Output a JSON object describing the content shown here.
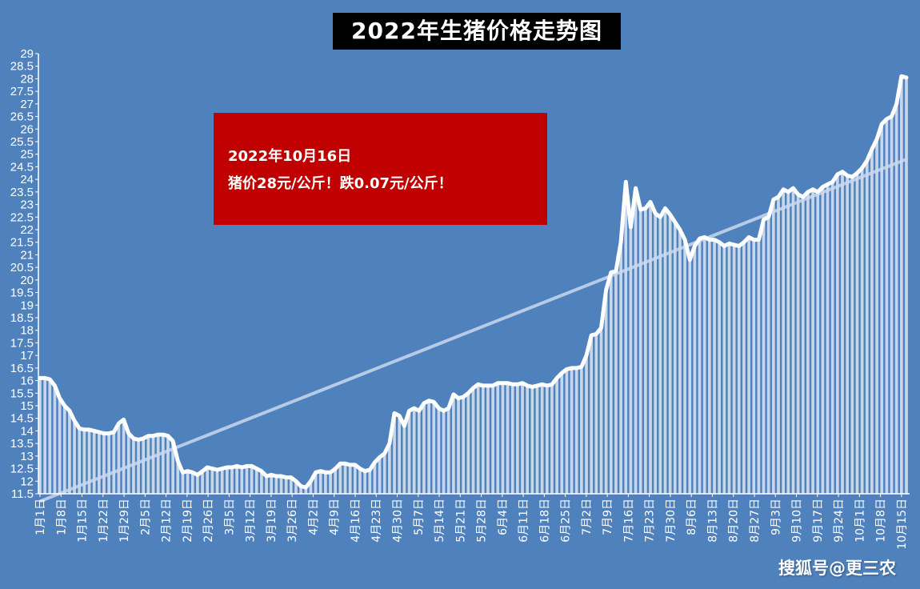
{
  "title": "2022年生猪价格走势图",
  "annotation": {
    "line1": "2022年10月16日",
    "line2": "猪价28元/公斤！跌0.07元/公斤！"
  },
  "watermark": "搜狐号@更三农",
  "colors": {
    "background": "#4f81bd",
    "title_bg": "#000000",
    "annotation_bg": "#c00000",
    "line": "#ffffff",
    "trend": "#c9d8ee"
  },
  "chart_data": {
    "type": "line",
    "title": "2022年生猪价格走势图",
    "xlabel": "",
    "ylabel": "",
    "ylim": [
      11.5,
      29
    ],
    "yticks": [
      "11.5",
      "12",
      "12.5",
      "13",
      "13.5",
      "14",
      "14.5",
      "15",
      "15.5",
      "16",
      "16.5",
      "17",
      "17.5",
      "18",
      "18.5",
      "19",
      "19.5",
      "20",
      "20.5",
      "21",
      "21.5",
      "22",
      "22.5",
      "23",
      "23.5",
      "24",
      "24.5",
      "25",
      "25.5",
      "26",
      "26.5",
      "27",
      "27.5",
      "28",
      "28.5",
      "29"
    ],
    "xtick_labels": [
      "1月1日",
      "1月8日",
      "1月15日",
      "1月22日",
      "1月29日",
      "2月5日",
      "2月12日",
      "2月19日",
      "2月26日",
      "3月5日",
      "3月12日",
      "3月19日",
      "3月26日",
      "4月2日",
      "4月9日",
      "4月16日",
      "4月23日",
      "4月30日",
      "5月7日",
      "5月14日",
      "5月21日",
      "5月28日",
      "6月4日",
      "6月11日",
      "6月18日",
      "6月25日",
      "7月2日",
      "7月9日",
      "7月16日",
      "7月23日",
      "7月30日",
      "8月6日",
      "8月13日",
      "8月20日",
      "8月27日",
      "9月3日",
      "9月10日",
      "9月17日",
      "9月24日",
      "10月1日",
      "10月8日",
      "10月15日"
    ],
    "series": [
      {
        "values": [
          16.1,
          16.1,
          16.05,
          15.8,
          15.3,
          15.0,
          14.8,
          14.4,
          14.1,
          14.05,
          14.05,
          14.0,
          13.95,
          13.9,
          13.9,
          13.95,
          14.3,
          14.45,
          13.9,
          13.7,
          13.65,
          13.7,
          13.8,
          13.8,
          13.85,
          13.85,
          13.8,
          13.6,
          12.8,
          12.35,
          12.4,
          12.35,
          12.25,
          12.4,
          12.55,
          12.5,
          12.45,
          12.5,
          12.55,
          12.55,
          12.6,
          12.55,
          12.6,
          12.6,
          12.5,
          12.4,
          12.2,
          12.25,
          12.2,
          12.2,
          12.15,
          12.15,
          12.0,
          11.8,
          11.75,
          12.0,
          12.35,
          12.4,
          12.35,
          12.35,
          12.5,
          12.7,
          12.7,
          12.65,
          12.65,
          12.5,
          12.4,
          12.45,
          12.75,
          12.95,
          13.1,
          13.5,
          14.7,
          14.6,
          14.2,
          14.8,
          14.9,
          14.8,
          15.1,
          15.2,
          15.15,
          14.9,
          14.8,
          14.9,
          15.45,
          15.3,
          15.35,
          15.5,
          15.7,
          15.85,
          15.8,
          15.8,
          15.8,
          15.9,
          15.9,
          15.9,
          15.85,
          15.85,
          15.9,
          15.8,
          15.75,
          15.8,
          15.85,
          15.8,
          15.85,
          16.1,
          16.3,
          16.45,
          16.5,
          16.5,
          16.55,
          17.0,
          17.8,
          17.85,
          18.1,
          19.6,
          20.3,
          20.35,
          21.5,
          23.9,
          22.1,
          23.65,
          22.8,
          22.85,
          23.1,
          22.65,
          22.5,
          22.85,
          22.6,
          22.3,
          22.0,
          21.6,
          20.8,
          21.35,
          21.65,
          21.7,
          21.6,
          21.6,
          21.5,
          21.35,
          21.45,
          21.4,
          21.35,
          21.5,
          21.7,
          21.6,
          21.6,
          22.4,
          22.5,
          23.2,
          23.3,
          23.6,
          23.5,
          23.65,
          23.4,
          23.3,
          23.5,
          23.6,
          23.5,
          23.7,
          23.8,
          23.9,
          24.2,
          24.3,
          24.15,
          24.1,
          24.25,
          24.45,
          24.75,
          25.2,
          25.6,
          26.2,
          26.4,
          26.5,
          27.0,
          28.1,
          28.05
        ]
      }
    ],
    "trendline": {
      "start": 11.2,
      "end": 24.8
    },
    "grid": false,
    "legend": "none"
  }
}
